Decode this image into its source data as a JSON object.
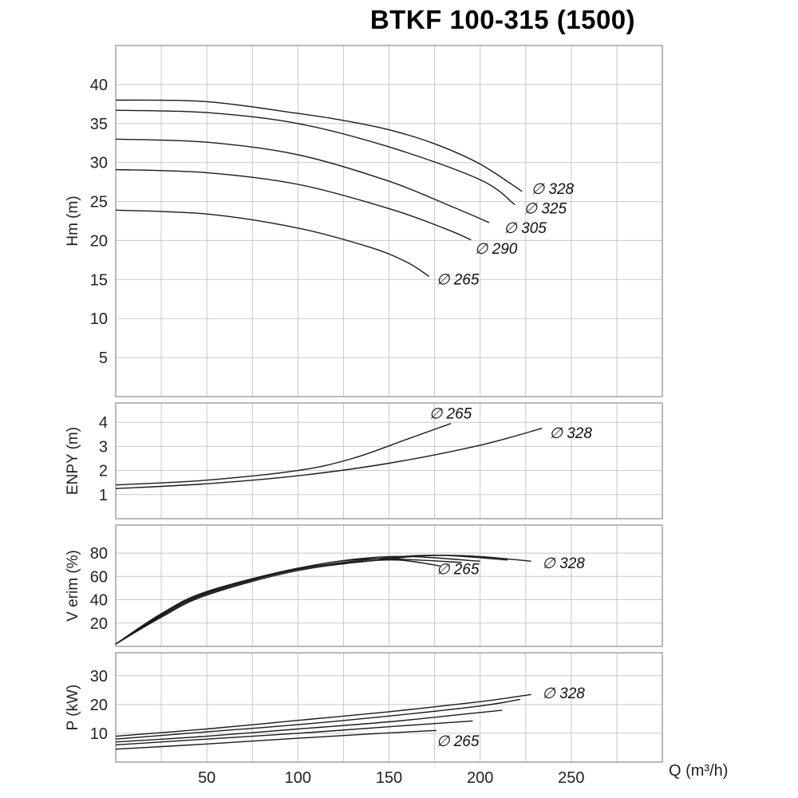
{
  "title": "BTKF 100-315 (1500)",
  "x_axis": {
    "label": "Q (m³/h)",
    "min": 0,
    "max": 300,
    "grid_step": 25,
    "ticks": [
      50,
      100,
      150,
      200,
      250
    ]
  },
  "chart_data": [
    {
      "type": "line",
      "id": "head",
      "ylabel": "Hm (m)",
      "ylim": [
        0,
        45
      ],
      "yticks": [
        5,
        10,
        15,
        20,
        25,
        30,
        35,
        40
      ],
      "grid": true,
      "legend_position": "curve-ends",
      "series": [
        {
          "name": "∅ 328",
          "points": [
            [
              0,
              38
            ],
            [
              50,
              37.8
            ],
            [
              100,
              36.3
            ],
            [
              125,
              35.4
            ],
            [
              150,
              34.2
            ],
            [
              175,
              32.4
            ],
            [
              200,
              29.8
            ],
            [
              223,
              26.3
            ]
          ],
          "label_at": [
            228,
            26.6
          ]
        },
        {
          "name": "∅ 325",
          "points": [
            [
              0,
              36.7
            ],
            [
              50,
              36.4
            ],
            [
              100,
              35.0
            ],
            [
              150,
              32.0
            ],
            [
              200,
              27.8
            ],
            [
              219,
              24.6
            ]
          ],
          "label_at": [
            224,
            24.1
          ]
        },
        {
          "name": "∅ 305",
          "points": [
            [
              0,
              33.0
            ],
            [
              50,
              32.6
            ],
            [
              100,
              31.0
            ],
            [
              150,
              27.6
            ],
            [
              185,
              24.3
            ],
            [
              205,
              22.3
            ]
          ],
          "label_at": [
            213,
            21.6
          ]
        },
        {
          "name": "∅ 290",
          "points": [
            [
              0,
              29.1
            ],
            [
              50,
              28.7
            ],
            [
              100,
              27.2
            ],
            [
              150,
              24.1
            ],
            [
              180,
              21.6
            ],
            [
              195,
              20.1
            ]
          ],
          "label_at": [
            197,
            18.9
          ]
        },
        {
          "name": "∅ 265",
          "points": [
            [
              0,
              23.9
            ],
            [
              50,
              23.4
            ],
            [
              100,
              21.6
            ],
            [
              140,
              19.1
            ],
            [
              160,
              17.2
            ],
            [
              172,
              15.4
            ]
          ],
          "label_at": [
            176,
            15.0
          ]
        }
      ]
    },
    {
      "type": "line",
      "id": "npsh",
      "ylabel": "ENPY (m)",
      "ylim": [
        0,
        4.8
      ],
      "yticks": [
        1,
        2,
        3,
        4
      ],
      "grid": true,
      "series": [
        {
          "name": "∅ 265",
          "points": [
            [
              0,
              1.4
            ],
            [
              50,
              1.6
            ],
            [
              100,
              2.0
            ],
            [
              130,
              2.5
            ],
            [
              160,
              3.3
            ],
            [
              184,
              3.95
            ]
          ],
          "label_at": [
            172,
            4.35
          ]
        },
        {
          "name": "∅ 328",
          "points": [
            [
              0,
              1.25
            ],
            [
              50,
              1.45
            ],
            [
              100,
              1.78
            ],
            [
              150,
              2.3
            ],
            [
              200,
              3.05
            ],
            [
              234,
              3.75
            ]
          ],
          "label_at": [
            238,
            3.55
          ]
        }
      ]
    },
    {
      "type": "line",
      "id": "efficiency",
      "ylabel": "V erim (%)",
      "ylim": [
        0,
        104
      ],
      "yticks": [
        20,
        40,
        60,
        80
      ],
      "grid": true,
      "series": [
        {
          "name": "∅ 328",
          "points": [
            [
              0,
              2
            ],
            [
              25,
              25
            ],
            [
              50,
              44
            ],
            [
              100,
              65
            ],
            [
              150,
              75
            ],
            [
              175,
              78
            ],
            [
              200,
              77
            ],
            [
              228,
              73
            ]
          ],
          "label_at": [
            234,
            71
          ]
        },
        {
          "name": "∅ 325",
          "points": [
            [
              0,
              2
            ],
            [
              25,
              26
            ],
            [
              50,
              45
            ],
            [
              100,
              66
            ],
            [
              150,
              76
            ],
            [
              180,
              78
            ],
            [
              215,
              74
            ]
          ]
        },
        {
          "name": "∅ 305",
          "points": [
            [
              0,
              2
            ],
            [
              25,
              27
            ],
            [
              50,
              46
            ],
            [
              100,
              67
            ],
            [
              150,
              77
            ],
            [
              200,
              73
            ]
          ]
        },
        {
          "name": "∅ 290",
          "points": [
            [
              0,
              2
            ],
            [
              25,
              28
            ],
            [
              50,
              47
            ],
            [
              100,
              67
            ],
            [
              140,
              75
            ],
            [
              190,
              72
            ]
          ]
        },
        {
          "name": "∅ 265",
          "points": [
            [
              0,
              2
            ],
            [
              25,
              28
            ],
            [
              50,
              47
            ],
            [
              100,
              66
            ],
            [
              130,
              72
            ],
            [
              155,
              74
            ],
            [
              178,
              69
            ]
          ],
          "label_at": [
            176,
            66
          ]
        }
      ]
    },
    {
      "type": "line",
      "id": "power",
      "ylabel": "P (kW)",
      "ylim": [
        0,
        38
      ],
      "yticks": [
        10,
        20,
        30
      ],
      "grid": true,
      "series": [
        {
          "name": "∅ 328",
          "points": [
            [
              0,
              9
            ],
            [
              50,
              11.5
            ],
            [
              100,
              14.5
            ],
            [
              150,
              17.5
            ],
            [
              200,
              21
            ],
            [
              228,
              23.5
            ]
          ],
          "label_at": [
            234,
            23.8
          ]
        },
        {
          "name": "∅ 325",
          "points": [
            [
              0,
              8
            ],
            [
              50,
              10.5
            ],
            [
              100,
              13
            ],
            [
              150,
              16
            ],
            [
              200,
              19.5
            ],
            [
              222,
              21.8
            ]
          ]
        },
        {
          "name": "∅ 305",
          "points": [
            [
              0,
              7
            ],
            [
              50,
              9
            ],
            [
              100,
              11.5
            ],
            [
              150,
              14
            ],
            [
              190,
              16.6
            ],
            [
              212,
              18
            ]
          ]
        },
        {
          "name": "∅ 290",
          "points": [
            [
              0,
              6
            ],
            [
              50,
              8
            ],
            [
              100,
              10
            ],
            [
              150,
              12.3
            ],
            [
              196,
              14.3
            ]
          ]
        },
        {
          "name": "∅ 265",
          "points": [
            [
              0,
              4.5
            ],
            [
              50,
              6.3
            ],
            [
              100,
              8.3
            ],
            [
              140,
              9.8
            ],
            [
              176,
              11
            ]
          ],
          "label_at": [
            176,
            7.2
          ]
        }
      ]
    }
  ]
}
